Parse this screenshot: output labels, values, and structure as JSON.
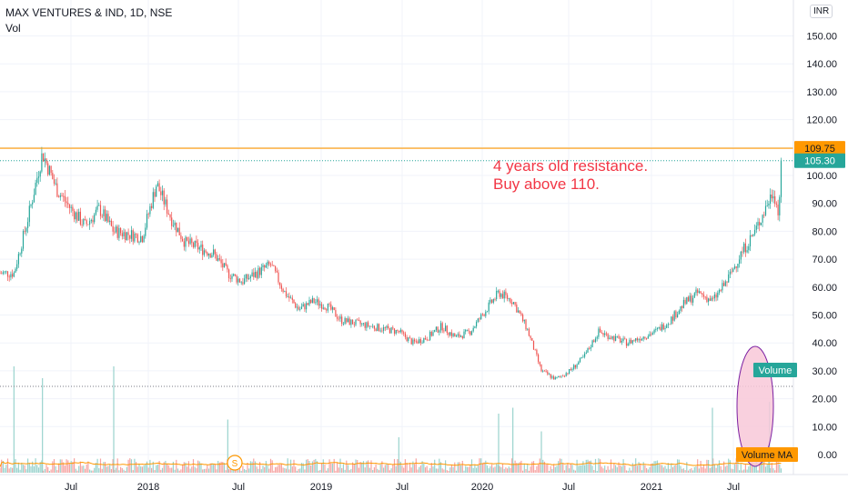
{
  "header": {
    "symbol_line": "MAX VENTURES & IND, 1D, NSE",
    "indicator": "Vol",
    "currency": "INR"
  },
  "colors": {
    "up": "#26a69a",
    "down": "#ef5350",
    "resistance": "#ff9800",
    "last_price": "#26a69a",
    "annotation": "#f23645",
    "volume_ma": "#ff9800",
    "ellipse_fill": "#f8c8d8",
    "ellipse_stroke": "#7b1fa2"
  },
  "chart_data": {
    "type": "candlestick",
    "title": "MAX VENTURES & IND, 1D, NSE",
    "y_ticks": [
      "150.00",
      "140.00",
      "130.00",
      "120.00",
      "110.00",
      "100.00",
      "90.00",
      "80.00",
      "70.00",
      "60.00",
      "50.00",
      "40.00",
      "30.00",
      "20.00",
      "10.00",
      "0.00"
    ],
    "x_ticks": [
      "Jul",
      "2018",
      "Jul",
      "2019",
      "Jul",
      "2020",
      "Jul",
      "2021",
      "Jul"
    ],
    "ylim": [
      0,
      155
    ],
    "price_path": [
      [
        "2017-03",
        65
      ],
      [
        "2017-04",
        85
      ],
      [
        "2017-05",
        108
      ],
      [
        "2017-06",
        95
      ],
      [
        "2017-07",
        88
      ],
      [
        "2017-08",
        82
      ],
      [
        "2017-09",
        88
      ],
      [
        "2017-10",
        80
      ],
      [
        "2017-12",
        78
      ],
      [
        "2018-01",
        97
      ],
      [
        "2018-02",
        85
      ],
      [
        "2018-03",
        76
      ],
      [
        "2018-05",
        72
      ],
      [
        "2018-06",
        65
      ],
      [
        "2018-07",
        62
      ],
      [
        "2018-09",
        68
      ],
      [
        "2018-10",
        58
      ],
      [
        "2018-11",
        52
      ],
      [
        "2018-12",
        55
      ],
      [
        "2019-01",
        53
      ],
      [
        "2019-02",
        48
      ],
      [
        "2019-04",
        46
      ],
      [
        "2019-06",
        44
      ],
      [
        "2019-07",
        40
      ],
      [
        "2019-08",
        42
      ],
      [
        "2019-09",
        46
      ],
      [
        "2019-10",
        42
      ],
      [
        "2019-11",
        44
      ],
      [
        "2020-01",
        58
      ],
      [
        "2020-02",
        55
      ],
      [
        "2020-03",
        45
      ],
      [
        "2020-04",
        30
      ],
      [
        "2020-05",
        27
      ],
      [
        "2020-06",
        30
      ],
      [
        "2020-07",
        35
      ],
      [
        "2020-08",
        44
      ],
      [
        "2020-10",
        40
      ],
      [
        "2020-12",
        44
      ],
      [
        "2021-01",
        48
      ],
      [
        "2021-02",
        54
      ],
      [
        "2021-03",
        58
      ],
      [
        "2021-04",
        55
      ],
      [
        "2021-05",
        62
      ],
      [
        "2021-06",
        72
      ],
      [
        "2021-07",
        80
      ],
      [
        "2021-08-10",
        95
      ],
      [
        "2021-08-20",
        86
      ],
      [
        "2021-08-27",
        105.3
      ]
    ],
    "resistance": {
      "value": 109.75,
      "label": "109.75"
    },
    "last_price": {
      "value": 105.3,
      "label": "105.30"
    },
    "volume_label": "Volume",
    "volume_ma_label": "Volume MA",
    "annotation": [
      "4 years old resistance.",
      "Buy above 110."
    ],
    "dividend_marker": "S",
    "volume_spikes": [
      [
        "2017-03",
        0.9
      ],
      [
        "2017-05",
        0.8
      ],
      [
        "2017-10",
        0.9
      ],
      [
        "2018-06",
        0.45
      ],
      [
        "2019-06",
        0.3
      ],
      [
        "2020-01",
        0.5
      ],
      [
        "2020-02",
        0.55
      ],
      [
        "2020-04",
        0.35
      ],
      [
        "2021-04",
        0.55
      ],
      [
        "2021-08",
        0.6
      ]
    ]
  }
}
